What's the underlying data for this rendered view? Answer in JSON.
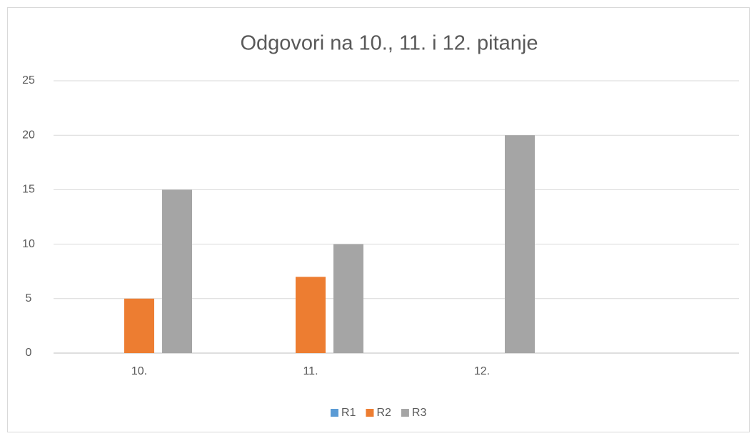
{
  "chart_data": {
    "type": "bar",
    "title": "Odgovori na 10., 11. i 12. pitanje",
    "categories": [
      "10.",
      "11.",
      "12.",
      null
    ],
    "series": [
      {
        "name": "R1",
        "color": "#5b9bd5",
        "values": [
          0,
          0,
          0,
          null
        ]
      },
      {
        "name": "R2",
        "color": "#ed7d31",
        "values": [
          5,
          7,
          0,
          null
        ]
      },
      {
        "name": "R3",
        "color": "#a5a5a5",
        "values": [
          15,
          10,
          20,
          null
        ]
      }
    ],
    "ylim": [
      0,
      25
    ],
    "yticks": [
      0,
      5,
      10,
      15,
      20,
      25
    ],
    "grid": true,
    "legend": "bottom"
  }
}
